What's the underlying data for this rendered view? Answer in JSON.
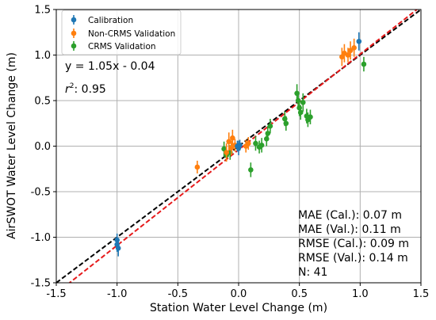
{
  "chart_data": {
    "type": "scatter",
    "xlabel": "Station Water Level Change (m)",
    "ylabel": "AirSWOT Water Level Change (m)",
    "xlim": [
      -1.5,
      1.5
    ],
    "ylim": [
      -1.5,
      1.5
    ],
    "x_ticks": [
      "-1.5",
      "-1.0",
      "-0.5",
      "0.0",
      "0.5",
      "1.0",
      "1.5"
    ],
    "y_ticks": [
      "-1.5",
      "-1.0",
      "-0.5",
      "0.0",
      "0.5",
      "1.0",
      "1.5"
    ],
    "grid": true,
    "legend_position": "top-left",
    "series": [
      {
        "name": "Calibration",
        "color": "#1f77b4",
        "points": [
          {
            "x": -1.0,
            "y": -1.03,
            "err": 0.07
          },
          {
            "x": -1.0,
            "y": -1.08,
            "err": 0.08
          },
          {
            "x": -0.99,
            "y": -1.12,
            "err": 0.09
          },
          {
            "x": -0.01,
            "y": 0.0,
            "err": 0.06
          },
          {
            "x": 0.0,
            "y": -0.02,
            "err": 0.08
          },
          {
            "x": 0.01,
            "y": 0.01,
            "err": 0.06
          },
          {
            "x": 0.99,
            "y": 1.15,
            "err": 0.1
          }
        ]
      },
      {
        "name": "Non-CRMS Validation",
        "color": "#ff7f0e",
        "points": [
          {
            "x": -0.34,
            "y": -0.23,
            "err": 0.07
          },
          {
            "x": -0.1,
            "y": -0.07,
            "err": 0.1
          },
          {
            "x": -0.08,
            "y": 0.05,
            "err": 0.1
          },
          {
            "x": -0.06,
            "y": -0.02,
            "err": 0.08
          },
          {
            "x": -0.05,
            "y": 0.09,
            "err": 0.09
          },
          {
            "x": -0.03,
            "y": 0.01,
            "err": 0.07
          },
          {
            "x": 0.06,
            "y": 0.0,
            "err": 0.07
          },
          {
            "x": 0.08,
            "y": 0.03,
            "err": 0.07
          },
          {
            "x": 0.85,
            "y": 0.98,
            "err": 0.1
          },
          {
            "x": 0.87,
            "y": 1.02,
            "err": 0.1
          },
          {
            "x": 0.9,
            "y": 1.0,
            "err": 0.08
          },
          {
            "x": 0.92,
            "y": 1.05,
            "err": 0.1
          },
          {
            "x": 0.95,
            "y": 1.08,
            "err": 0.1
          }
        ]
      },
      {
        "name": "CRMS Validation",
        "color": "#2ca02c",
        "points": [
          {
            "x": -0.12,
            "y": -0.03,
            "err": 0.08
          },
          {
            "x": -0.1,
            "y": -0.1,
            "err": 0.07
          },
          {
            "x": -0.07,
            "y": -0.07,
            "err": 0.08
          },
          {
            "x": 0.1,
            "y": -0.26,
            "err": 0.08
          },
          {
            "x": 0.14,
            "y": 0.03,
            "err": 0.08
          },
          {
            "x": 0.17,
            "y": -0.01,
            "err": 0.07
          },
          {
            "x": 0.19,
            "y": 0.01,
            "err": 0.08
          },
          {
            "x": 0.23,
            "y": 0.08,
            "err": 0.08
          },
          {
            "x": 0.24,
            "y": 0.14,
            "err": 0.08
          },
          {
            "x": 0.26,
            "y": 0.22,
            "err": 0.08
          },
          {
            "x": 0.38,
            "y": 0.3,
            "err": 0.08
          },
          {
            "x": 0.39,
            "y": 0.25,
            "err": 0.08
          },
          {
            "x": 0.48,
            "y": 0.58,
            "err": 0.1
          },
          {
            "x": 0.49,
            "y": 0.5,
            "err": 0.09
          },
          {
            "x": 0.5,
            "y": 0.42,
            "err": 0.09
          },
          {
            "x": 0.51,
            "y": 0.37,
            "err": 0.08
          },
          {
            "x": 0.53,
            "y": 0.48,
            "err": 0.1
          },
          {
            "x": 0.56,
            "y": 0.33,
            "err": 0.08
          },
          {
            "x": 0.57,
            "y": 0.29,
            "err": 0.08
          },
          {
            "x": 0.59,
            "y": 0.32,
            "err": 0.08
          },
          {
            "x": 1.03,
            "y": 0.9,
            "err": 0.08
          }
        ]
      }
    ],
    "lines": [
      {
        "label": "1:1",
        "color": "#000000",
        "dash": true,
        "slope": 1.0,
        "intercept": 0.0
      },
      {
        "label": "fit",
        "color": "#e6191a",
        "dash": true,
        "slope": 1.05,
        "intercept": -0.04
      }
    ],
    "annotations": {
      "equation": "y = 1.05x - 0.04",
      "r2_label": "r",
      "r2_exp": "2",
      "r2_value": ": 0.95",
      "stats": [
        "MAE (Cal.): 0.07 m",
        "MAE (Val.): 0.11 m",
        "RMSE (Cal.): 0.09 m",
        "RMSE (Val.): 0.14 m",
        "N: 41"
      ]
    }
  }
}
